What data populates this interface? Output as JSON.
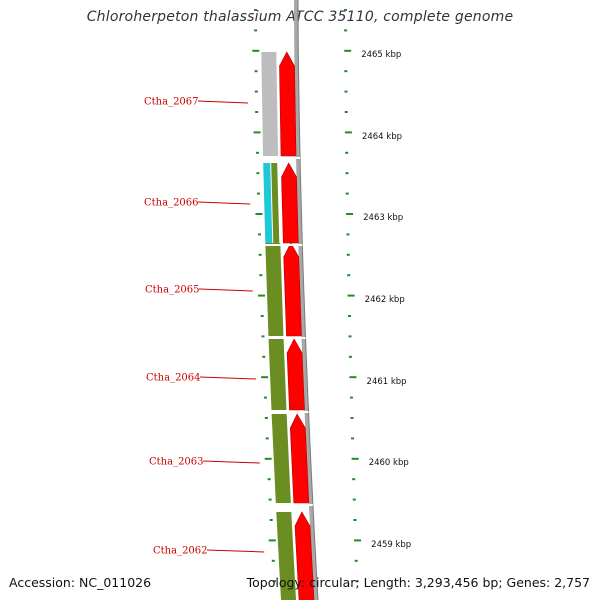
{
  "title": "Chloroherpeton thalassium ATCC 35110, complete genome",
  "accession": "Accession: NC_011026",
  "summary": "Topology: circular; Length: 3,293,456 bp; Genes: 2,757",
  "colors": {
    "cds_forward": "#ff0000",
    "backbone": "#a8a8a8",
    "cog_gray": "#bdbdbd",
    "cog_cyan": "#1fc8d8",
    "cog_olive": "#6b8e23",
    "tick": "#228b22",
    "label": "#cc0000"
  },
  "scale_labels": [
    "2465 kbp",
    "2464 kbp",
    "2463 kbp",
    "2462 kbp",
    "2461 kbp",
    "2460 kbp",
    "2459 kbp"
  ],
  "genes": [
    {
      "label": "Ctha_2067",
      "cog_color": "#bdbdbd"
    },
    {
      "label": "Ctha_2066",
      "cog_color": "#1fc8d8"
    },
    {
      "label": "Ctha_2065",
      "cog_color": "#6b8e23"
    },
    {
      "label": "Ctha_2064",
      "cog_color": "#6b8e23"
    },
    {
      "label": "Ctha_2063",
      "cog_color": "#6b8e23"
    },
    {
      "label": "Ctha_2062",
      "cog_color": "#6b8e23"
    }
  ]
}
